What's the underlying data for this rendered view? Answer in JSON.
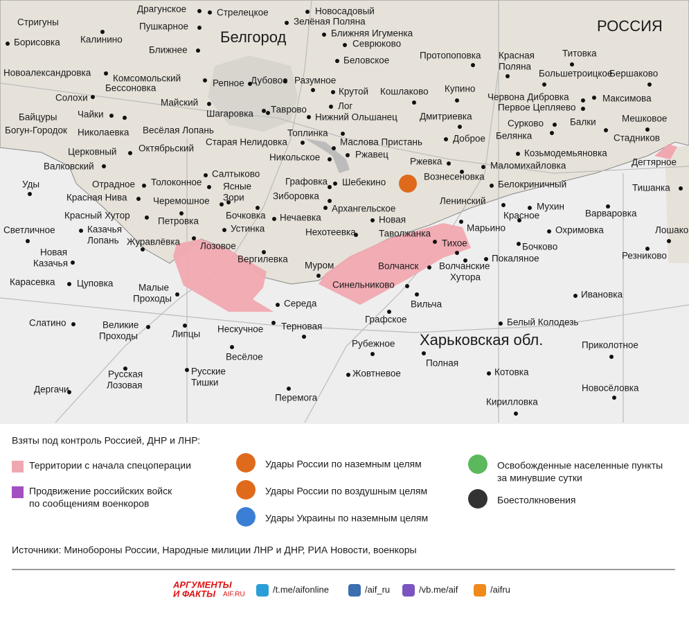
{
  "map": {
    "regions": [
      "РОССИЯ",
      "Харьковская обл."
    ],
    "city": "Белгород",
    "places": [
      "Драгунское",
      "Стрелецкое",
      "Новосадовый",
      "Зелёная Поляна",
      "Стригуны",
      "Пушкарное",
      "Ближняя Игуменка",
      "Калинино",
      "Борисовка",
      "Севрюково",
      "Ближнее",
      "Протопоповка",
      [
        "Красная",
        "Поляна"
      ],
      "Титовка",
      "Беловское",
      "Новоалександровка",
      "Комсомольский",
      "Бессоновка",
      "Репное",
      "Дубовое",
      "Разумное",
      "Большетроицкое",
      "Бершаково",
      "Солохи",
      "Крутой",
      "Кошлаково",
      "Купино",
      "Червона Дибровка",
      "Максимова",
      "Майский",
      "Лог",
      "Таврово",
      "Шагаровка",
      "Байцуры",
      "Чайки",
      "Нижний Ольшанец",
      "Первое Цепляево",
      "Дмитриевка",
      "Мешковое",
      "Богун-Городок",
      "Николаевка",
      "Весёлая Лопань",
      "Сурково",
      "Стадников",
      "Балки",
      "Топлинка",
      "Старая Нелидовка",
      "Маслова Пристань",
      "Доброе",
      "Белянка",
      "Церковный",
      "Октябрьский",
      "Козьмодемьяновка",
      "Никольское",
      "Ржавец",
      "Дегтярное",
      "Ржевка",
      "Валковский",
      "Маломихайловка",
      "Салтыково",
      "Вознесеновка",
      "Графовка",
      "Шебекино",
      "Белокриничный",
      "Уды",
      "Отрадное",
      "Толоконное",
      [
        "Ясные",
        "Зори"
      ],
      "Тишанка",
      "Красная Нива",
      "Черемошное",
      "Зиборовка",
      "Ленинский",
      "Мухин",
      "Бочковка",
      "Архангельское",
      "Варваровка",
      "Красный Хутор",
      "Петровка",
      "Нечаевка",
      "Новая",
      "Красное",
      "Марьино",
      "Устинка",
      "Охримовка",
      [
        "Казачья",
        "Лопань"
      ],
      "Светличное",
      "Нехотеевка",
      "Таволжанка",
      "Лошаково",
      "Журавлёвка",
      "Тихое",
      "Бочково",
      "Лозовое",
      [
        "Новая",
        "Казачья"
      ],
      "Резниково",
      "Покаляное",
      "Вергилевка",
      "Волчанск",
      [
        "Волчанские",
        "Хутора"
      ],
      "Муром",
      "Карасевка",
      "Цуповка",
      "Синельниково",
      [
        "Малые",
        "Проходы"
      ],
      "Ивановка",
      "Середа",
      "Вильча",
      "Графское",
      "Слатино",
      "Белый Колодезь",
      [
        "Великие",
        "Проходы"
      ],
      "Нескучное",
      "Терновая",
      "Липцы",
      "Рубежное",
      "Приколотное",
      "Весёлое",
      "Полная",
      [
        "Русская",
        "Лозовая"
      ],
      [
        "Русские",
        "Тишки"
      ],
      "Жовтневое",
      "Котовка",
      "Дергачи",
      "Новосёловка",
      "Перемога",
      "Кирилловка"
    ]
  },
  "legend": {
    "title": "Взяты под контроль Россией, ДНР и ЛНР:",
    "items": [
      "Территории с начала спецоперации",
      [
        "Продвижение российских войск",
        "по сообщениям военкоров"
      ],
      "Удары России по наземным целям",
      "Удары России по воздушным целям",
      "Удары Украины по наземным целям",
      [
        "Освобожденные населенные пункты",
        "за минувшие сутки"
      ],
      "Боестолкновения"
    ]
  },
  "sources": "Источники: Минобороны России, Народные милиции ЛНР и ДНР, РИА Новости, военкоры",
  "footer": {
    "logo": [
      "АРГУМЕНТЫ",
      "И ФАКТЫ"
    ],
    "logo_site": "AIF.RU",
    "links": [
      "/t.me/aifonline",
      "/aif_ru",
      "/vb.me/aif",
      "/aifru"
    ]
  }
}
